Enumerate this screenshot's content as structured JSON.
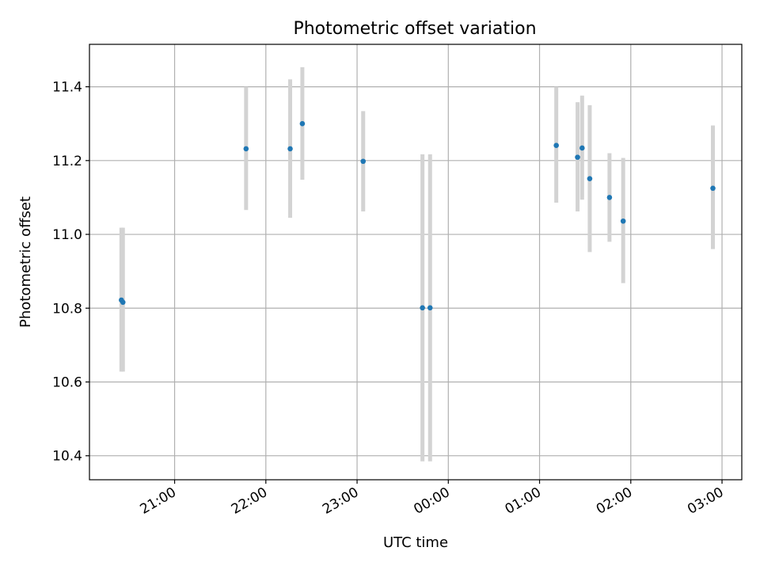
{
  "chart_data": {
    "type": "scatter",
    "title": "Photometric offset variation",
    "xlabel": "UTC time",
    "ylabel": "Photometric offset",
    "x_ticks": [
      "21:00",
      "22:00",
      "23:00",
      "00:00",
      "01:00",
      "02:00",
      "03:00"
    ],
    "y_ticks": [
      "10.4",
      "10.6",
      "10.8",
      "11.0",
      "11.2",
      "11.4"
    ],
    "xlim": [
      "20:04",
      "03:13"
    ],
    "ylim": [
      10.335,
      11.515
    ],
    "grid": true,
    "series": [
      {
        "marker_color": "#1f77b4",
        "errorbar_color": "#d3d3d3",
        "points": [
          {
            "x": "20:25",
            "y": 10.822,
            "yerr_low": 10.628,
            "yerr_high": 11.018
          },
          {
            "x": "20:26",
            "y": 10.816,
            "yerr_low": 10.628,
            "yerr_high": 11.018
          },
          {
            "x": "21:47",
            "y": 11.232,
            "yerr_low": 11.066,
            "yerr_high": 11.4
          },
          {
            "x": "22:16",
            "y": 11.232,
            "yerr_low": 11.045,
            "yerr_high": 11.42
          },
          {
            "x": "22:24",
            "y": 11.3,
            "yerr_low": 11.148,
            "yerr_high": 11.453
          },
          {
            "x": "23:04",
            "y": 11.198,
            "yerr_low": 11.062,
            "yerr_high": 11.334
          },
          {
            "x": "23:43",
            "y": 10.801,
            "yerr_low": 10.385,
            "yerr_high": 11.217
          },
          {
            "x": "23:48",
            "y": 10.801,
            "yerr_low": 10.385,
            "yerr_high": 11.217
          },
          {
            "x": "01:11",
            "y": 11.241,
            "yerr_low": 11.086,
            "yerr_high": 11.4
          },
          {
            "x": "01:25",
            "y": 11.209,
            "yerr_low": 11.062,
            "yerr_high": 11.358
          },
          {
            "x": "01:28",
            "y": 11.234,
            "yerr_low": 11.094,
            "yerr_high": 11.376
          },
          {
            "x": "01:33",
            "y": 11.151,
            "yerr_low": 10.952,
            "yerr_high": 11.35
          },
          {
            "x": "01:46",
            "y": 11.1,
            "yerr_low": 10.98,
            "yerr_high": 11.22
          },
          {
            "x": "01:55",
            "y": 11.036,
            "yerr_low": 10.868,
            "yerr_high": 11.207
          },
          {
            "x": "02:54",
            "y": 11.125,
            "yerr_low": 10.96,
            "yerr_high": 11.295
          }
        ]
      }
    ]
  }
}
